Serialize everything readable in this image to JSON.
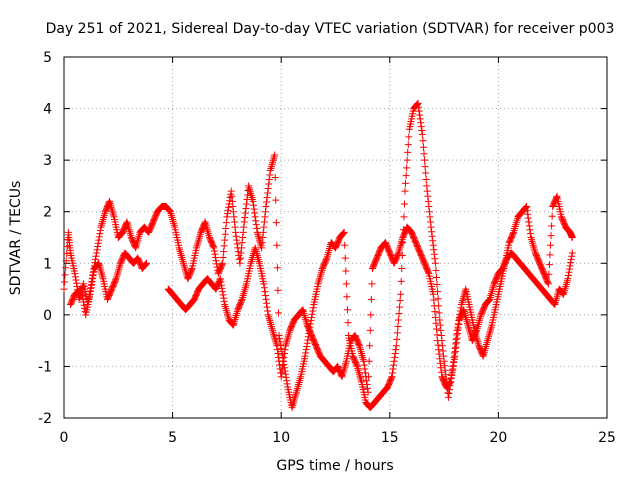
{
  "chart_data": {
    "type": "scatter",
    "title": "Day 251 of 2021, Sidereal Day-to-day VTEC variation (SDTVAR) for receiver p003",
    "xlabel": "GPS time / hours",
    "ylabel": "SDTVAR / TECUs",
    "xlim": [
      0,
      25
    ],
    "ylim": [
      -2,
      5
    ],
    "x_ticks": [
      "0",
      "5",
      "10",
      "15",
      "20",
      "25"
    ],
    "y_ticks": [
      "-2",
      "-1",
      "0",
      "1",
      "2",
      "3",
      "4",
      "5"
    ],
    "grid": true,
    "marker": "+",
    "series": [
      {
        "name": "SDTVAR",
        "color": "#ff0000",
        "points": [
          [
            0.0,
            0.5
          ],
          [
            0.2,
            1.6
          ],
          [
            0.3,
            1.2
          ],
          [
            0.5,
            0.8
          ],
          [
            0.7,
            0.3
          ],
          [
            0.9,
            0.6
          ],
          [
            1.1,
            0.2
          ],
          [
            1.3,
            0.7
          ],
          [
            1.5,
            1.2
          ],
          [
            1.7,
            1.7
          ],
          [
            1.9,
            2.0
          ],
          [
            2.1,
            2.2
          ],
          [
            2.3,
            1.9
          ],
          [
            2.5,
            1.5
          ],
          [
            2.7,
            1.6
          ],
          [
            2.9,
            1.8
          ],
          [
            3.1,
            1.5
          ],
          [
            3.3,
            1.3
          ],
          [
            3.5,
            1.6
          ],
          [
            3.7,
            1.7
          ],
          [
            3.9,
            1.6
          ],
          [
            4.1,
            1.8
          ],
          [
            4.3,
            2.0
          ],
          [
            4.5,
            2.1
          ],
          [
            4.7,
            2.1
          ],
          [
            4.9,
            2.0
          ],
          [
            5.1,
            1.7
          ],
          [
            5.3,
            1.3
          ],
          [
            5.5,
            1.0
          ],
          [
            5.7,
            0.7
          ],
          [
            5.9,
            0.9
          ],
          [
            6.1,
            1.3
          ],
          [
            6.3,
            1.6
          ],
          [
            6.5,
            1.8
          ],
          [
            6.7,
            1.5
          ],
          [
            6.9,
            1.3
          ],
          [
            7.1,
            0.8
          ],
          [
            7.3,
            1.0
          ],
          [
            7.5,
            1.9
          ],
          [
            7.7,
            2.4
          ],
          [
            7.9,
            1.6
          ],
          [
            8.1,
            1.0
          ],
          [
            8.3,
            1.8
          ],
          [
            8.5,
            2.5
          ],
          [
            8.7,
            2.2
          ],
          [
            8.9,
            1.6
          ],
          [
            9.1,
            1.3
          ],
          [
            9.3,
            2.1
          ],
          [
            9.5,
            2.8
          ],
          [
            9.7,
            3.1
          ],
          [
            9.9,
            -0.4
          ],
          [
            10.1,
            -0.9
          ],
          [
            10.3,
            -1.4
          ],
          [
            10.5,
            -1.8
          ],
          [
            10.7,
            -1.5
          ],
          [
            10.9,
            -1.2
          ],
          [
            11.1,
            -0.8
          ],
          [
            11.3,
            -0.3
          ],
          [
            11.5,
            0.2
          ],
          [
            11.7,
            0.6
          ],
          [
            11.9,
            0.9
          ],
          [
            12.1,
            1.1
          ],
          [
            12.3,
            1.4
          ],
          [
            12.5,
            1.3
          ],
          [
            12.7,
            1.5
          ],
          [
            12.9,
            1.6
          ],
          [
            13.1,
            -0.4
          ],
          [
            13.3,
            -0.8
          ],
          [
            13.5,
            -1.0
          ],
          [
            13.7,
            -1.3
          ],
          [
            13.9,
            -1.7
          ],
          [
            14.1,
            -1.8
          ],
          [
            14.3,
            -1.7
          ],
          [
            14.5,
            -1.6
          ],
          [
            14.7,
            -1.5
          ],
          [
            14.9,
            -1.4
          ],
          [
            15.1,
            -1.2
          ],
          [
            15.3,
            -0.6
          ],
          [
            15.5,
            0.4
          ],
          [
            15.7,
            2.4
          ],
          [
            15.9,
            3.6
          ],
          [
            16.1,
            4.0
          ],
          [
            16.3,
            4.1
          ],
          [
            16.5,
            3.5
          ],
          [
            16.7,
            2.5
          ],
          [
            16.9,
            1.7
          ],
          [
            17.1,
            1.0
          ],
          [
            17.3,
            -0.1
          ],
          [
            17.5,
            -0.9
          ],
          [
            17.7,
            -1.6
          ],
          [
            17.9,
            -1.0
          ],
          [
            18.1,
            -0.3
          ],
          [
            18.3,
            0.2
          ],
          [
            18.5,
            0.5
          ],
          [
            18.7,
            0.1
          ],
          [
            18.9,
            -0.3
          ],
          [
            19.1,
            -0.6
          ],
          [
            19.3,
            -0.8
          ],
          [
            19.5,
            -0.5
          ],
          [
            19.7,
            -0.2
          ],
          [
            19.9,
            0.2
          ],
          [
            20.1,
            0.6
          ],
          [
            20.3,
            1.0
          ],
          [
            20.5,
            1.4
          ],
          [
            20.7,
            1.6
          ],
          [
            20.9,
            1.9
          ],
          [
            21.1,
            2.0
          ],
          [
            21.3,
            2.1
          ],
          [
            21.5,
            1.5
          ],
          [
            21.7,
            1.2
          ],
          [
            21.9,
            1.0
          ],
          [
            22.1,
            0.8
          ],
          [
            22.3,
            0.6
          ],
          [
            22.5,
            2.1
          ],
          [
            22.7,
            2.3
          ],
          [
            22.9,
            1.9
          ],
          [
            23.1,
            1.7
          ],
          [
            23.3,
            1.6
          ],
          [
            23.4,
            1.5
          ],
          [
            0.3,
            0.2
          ],
          [
            0.5,
            0.4
          ],
          [
            0.8,
            0.5
          ],
          [
            1.0,
            0.0
          ],
          [
            1.2,
            0.4
          ],
          [
            1.4,
            0.9
          ],
          [
            1.6,
            1.0
          ],
          [
            1.8,
            0.7
          ],
          [
            2.0,
            0.3
          ],
          [
            2.2,
            0.5
          ],
          [
            2.4,
            0.7
          ],
          [
            2.6,
            1.0
          ],
          [
            2.8,
            1.2
          ],
          [
            3.0,
            1.1
          ],
          [
            3.2,
            1.0
          ],
          [
            3.4,
            1.1
          ],
          [
            3.6,
            0.9
          ],
          [
            3.8,
            1.0
          ],
          [
            4.8,
            0.5
          ],
          [
            5.0,
            0.4
          ],
          [
            5.2,
            0.3
          ],
          [
            5.4,
            0.2
          ],
          [
            5.6,
            0.1
          ],
          [
            5.8,
            0.2
          ],
          [
            6.0,
            0.3
          ],
          [
            6.2,
            0.5
          ],
          [
            6.4,
            0.6
          ],
          [
            6.6,
            0.7
          ],
          [
            6.8,
            0.6
          ],
          [
            7.0,
            0.5
          ],
          [
            7.2,
            0.7
          ],
          [
            7.4,
            0.2
          ],
          [
            7.6,
            -0.1
          ],
          [
            7.8,
            -0.2
          ],
          [
            8.0,
            0.1
          ],
          [
            8.2,
            0.3
          ],
          [
            8.4,
            0.6
          ],
          [
            8.6,
            1.0
          ],
          [
            8.8,
            1.3
          ],
          [
            9.0,
            1.0
          ],
          [
            9.2,
            0.6
          ],
          [
            9.4,
            0.0
          ],
          [
            9.6,
            -0.3
          ],
          [
            9.8,
            -0.6
          ],
          [
            10.0,
            -1.2
          ],
          [
            10.2,
            -0.6
          ],
          [
            10.4,
            -0.3
          ],
          [
            10.6,
            -0.1
          ],
          [
            10.8,
            0.0
          ],
          [
            11.0,
            0.1
          ],
          [
            11.2,
            -0.2
          ],
          [
            11.4,
            -0.4
          ],
          [
            11.6,
            -0.6
          ],
          [
            11.8,
            -0.8
          ],
          [
            12.0,
            -0.9
          ],
          [
            12.2,
            -1.0
          ],
          [
            12.4,
            -1.1
          ],
          [
            12.6,
            -1.0
          ],
          [
            12.8,
            -1.2
          ],
          [
            13.0,
            -0.9
          ],
          [
            13.2,
            -0.5
          ],
          [
            13.4,
            -0.4
          ],
          [
            13.6,
            -0.6
          ],
          [
            13.8,
            -0.9
          ],
          [
            14.0,
            -1.5
          ],
          [
            14.2,
            0.9
          ],
          [
            14.4,
            1.1
          ],
          [
            14.6,
            1.3
          ],
          [
            14.8,
            1.4
          ],
          [
            15.0,
            1.2
          ],
          [
            15.2,
            1.0
          ],
          [
            15.4,
            1.2
          ],
          [
            15.6,
            1.5
          ],
          [
            15.8,
            1.7
          ],
          [
            16.0,
            1.6
          ],
          [
            16.2,
            1.4
          ],
          [
            16.4,
            1.2
          ],
          [
            16.6,
            1.0
          ],
          [
            16.8,
            0.8
          ],
          [
            17.0,
            0.4
          ],
          [
            17.2,
            -0.5
          ],
          [
            17.4,
            -1.2
          ],
          [
            17.6,
            -1.4
          ],
          [
            17.8,
            -1.3
          ],
          [
            18.0,
            -0.8
          ],
          [
            18.2,
            -0.1
          ],
          [
            18.4,
            0.1
          ],
          [
            18.6,
            -0.2
          ],
          [
            18.8,
            -0.5
          ],
          [
            19.0,
            -0.3
          ],
          [
            19.2,
            0.0
          ],
          [
            19.4,
            0.2
          ],
          [
            19.6,
            0.3
          ],
          [
            19.8,
            0.6
          ],
          [
            20.0,
            0.8
          ],
          [
            20.2,
            0.9
          ],
          [
            20.4,
            1.1
          ],
          [
            20.6,
            1.2
          ],
          [
            20.8,
            1.1
          ],
          [
            21.0,
            1.0
          ],
          [
            21.2,
            0.9
          ],
          [
            21.4,
            0.8
          ],
          [
            21.6,
            0.7
          ],
          [
            21.8,
            0.6
          ],
          [
            22.0,
            0.5
          ],
          [
            22.2,
            0.4
          ],
          [
            22.4,
            0.3
          ],
          [
            22.6,
            0.2
          ],
          [
            22.8,
            0.5
          ],
          [
            23.0,
            0.4
          ],
          [
            23.2,
            0.7
          ],
          [
            23.4,
            1.2
          ]
        ]
      }
    ]
  }
}
